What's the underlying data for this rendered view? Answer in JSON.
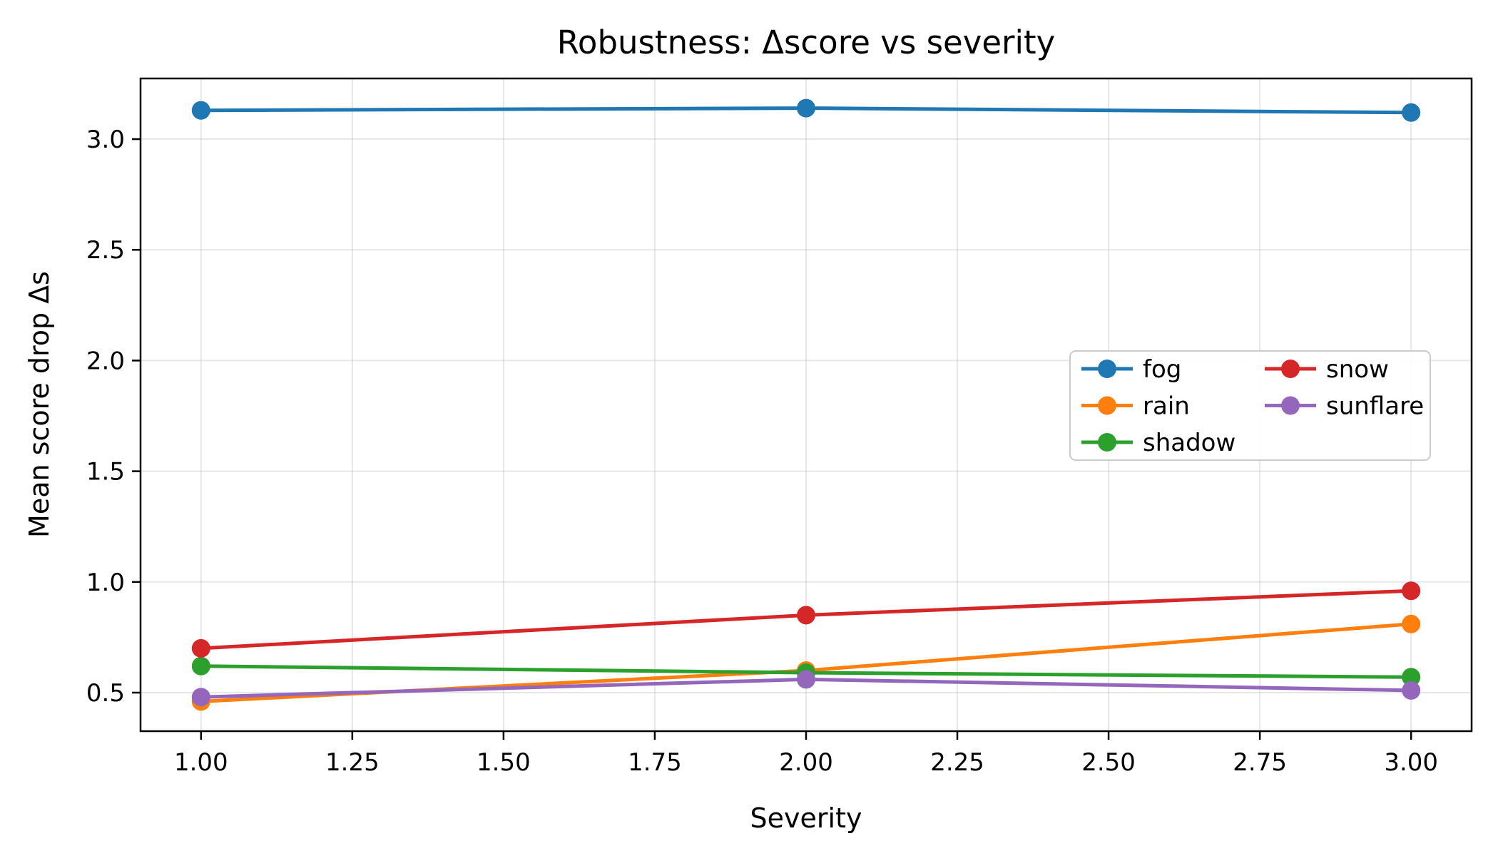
{
  "figure": {
    "background": "#ffffff",
    "spine_color": "#000000",
    "grid_color": "#b0b0b0"
  },
  "chart_data": {
    "type": "line",
    "title": "Robustness: Δscore vs severity",
    "xlabel": "Severity",
    "ylabel": "Mean score drop Δs",
    "x": [
      1,
      2,
      3
    ],
    "xlim": [
      0.9,
      3.1
    ],
    "ylim": [
      0.326,
      3.274
    ],
    "xtick_values": [
      1.0,
      1.25,
      1.5,
      1.75,
      2.0,
      2.25,
      2.5,
      2.75,
      3.0
    ],
    "xtick_labels": [
      "1.00",
      "1.25",
      "1.50",
      "1.75",
      "2.00",
      "2.25",
      "2.50",
      "2.75",
      "3.00"
    ],
    "ytick_values": [
      0.5,
      1.0,
      1.5,
      2.0,
      2.5,
      3.0
    ],
    "ytick_labels": [
      "0.5",
      "1.0",
      "1.5",
      "2.0",
      "2.5",
      "3.0"
    ],
    "grid": true,
    "legend_position": "center-right",
    "legend_columns": 2,
    "series": [
      {
        "name": "fog",
        "color": "#1f77b4",
        "values": [
          3.13,
          3.14,
          3.12
        ]
      },
      {
        "name": "rain",
        "color": "#ff7f0e",
        "values": [
          0.46,
          0.6,
          0.81
        ]
      },
      {
        "name": "shadow",
        "color": "#2ca02c",
        "values": [
          0.62,
          0.59,
          0.57
        ]
      },
      {
        "name": "snow",
        "color": "#d62728",
        "values": [
          0.7,
          0.85,
          0.96
        ]
      },
      {
        "name": "sunflare",
        "color": "#9467bd",
        "values": [
          0.48,
          0.56,
          0.51
        ]
      }
    ]
  }
}
